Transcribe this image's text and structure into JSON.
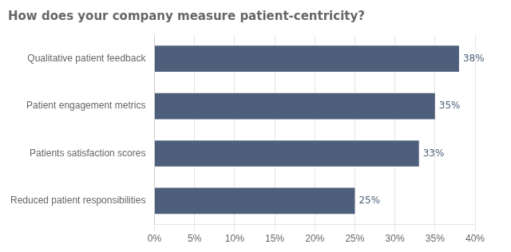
{
  "chart_data": {
    "type": "bar",
    "orientation": "horizontal",
    "title": "How does your company measure patient-centricity?",
    "categories": [
      "Reduced patient responsibilities",
      "Patients satisfaction scores",
      "Patient engagement metrics",
      "Qualitative patient feedback"
    ],
    "values": [
      25,
      33,
      35,
      38
    ],
    "value_labels": [
      "25%",
      "33%",
      "35%",
      "38%"
    ],
    "data_labels": true,
    "color": "#4d5f7a",
    "xlim": [
      0,
      40
    ],
    "xticks": [
      {
        "value": 0,
        "label": "0%"
      },
      {
        "value": 5,
        "label": "5%"
      },
      {
        "value": 10,
        "label": "10%"
      },
      {
        "value": 15,
        "label": "15%"
      },
      {
        "value": 20,
        "label": "20%"
      },
      {
        "value": 25,
        "label": "25%"
      },
      {
        "value": 30,
        "label": "30%"
      },
      {
        "value": 35,
        "label": "35%"
      },
      {
        "value": 40,
        "label": "40%"
      }
    ],
    "grid": true
  }
}
